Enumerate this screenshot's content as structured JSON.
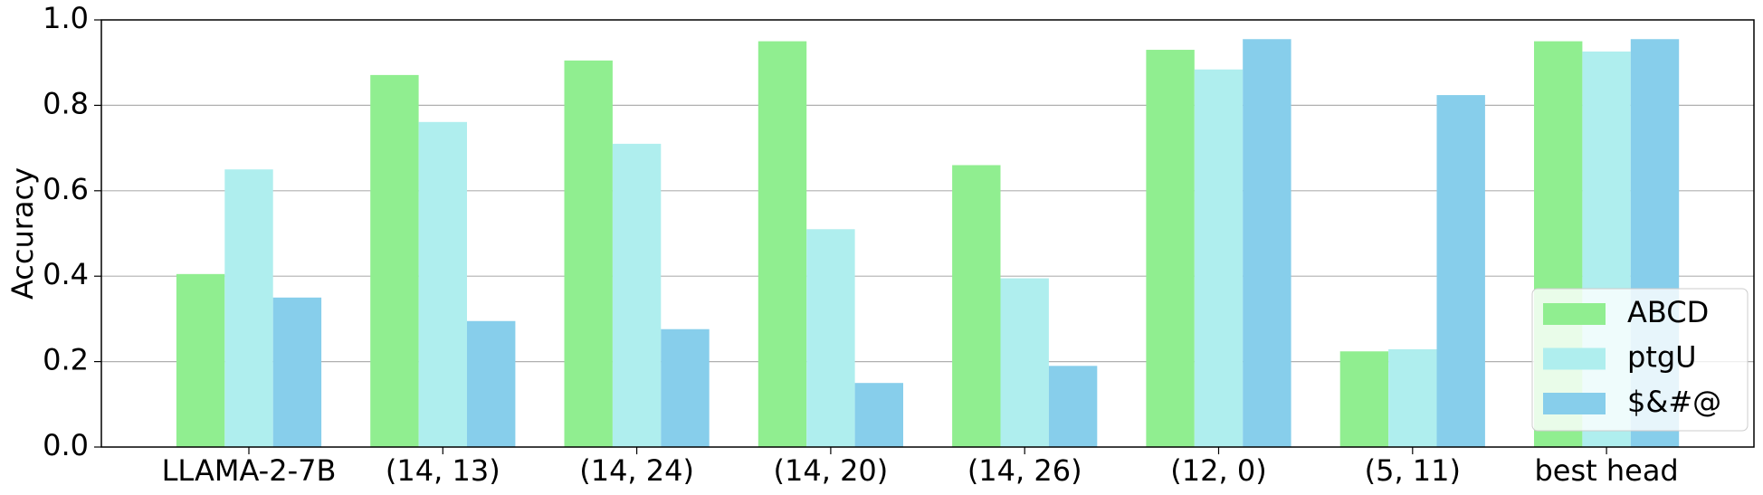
{
  "chart_data": {
    "type": "bar",
    "y_label": "Accuracy",
    "categories": [
      "LLAMA-2-7B",
      "(14, 13)",
      "(14, 24)",
      "(14, 20)",
      "(14, 26)",
      "(12, 0)",
      "(5, 11)",
      "best head"
    ],
    "series": [
      {
        "name": "ABCD",
        "color": "#90ee90",
        "values": [
          0.405,
          0.871,
          0.905,
          0.95,
          0.66,
          0.93,
          0.224,
          0.95
        ]
      },
      {
        "name": "ptgU",
        "color": "#afeeee",
        "values": [
          0.65,
          0.761,
          0.71,
          0.51,
          0.395,
          0.884,
          0.229,
          0.926
        ]
      },
      {
        "name": "$&#@",
        "color": "#87ceeb",
        "values": [
          0.35,
          0.295,
          0.276,
          0.15,
          0.19,
          0.955,
          0.824,
          0.955
        ]
      }
    ],
    "ylim": [
      0,
      1
    ],
    "yticks": [
      {
        "value": 0,
        "label": "0.0"
      },
      0.2,
      0.4,
      0.6,
      0.8,
      {
        "value": 1,
        "label": "1.0"
      }
    ],
    "grid": true,
    "legend": "lower right"
  }
}
